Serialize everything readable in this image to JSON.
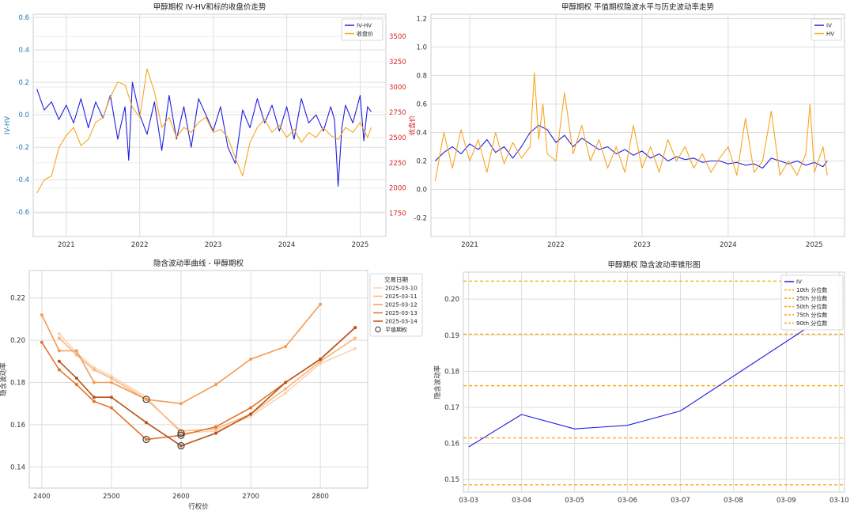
{
  "colors": {
    "iv": "#1f1fe0",
    "hv": "#f5a623",
    "price_axis": "#d62728",
    "left_axis": "#1f77b4",
    "grid": "#dddddd",
    "pct": "#ffa500",
    "smile": [
      "#fcd2b0",
      "#fbb67f",
      "#f59a52",
      "#e4742e",
      "#b6541a"
    ]
  },
  "chart_data": [
    {
      "id": "p1",
      "type": "line",
      "title": "甲醇期权 IV-HV和标的收盘价走势",
      "ylabel": "IV-HV",
      "ylabel_right": "收盘价",
      "xlim": [
        2020.55,
        2025.35
      ],
      "ylim": [
        -0.75,
        0.62
      ],
      "ylim_right": [
        1520,
        3720
      ],
      "x_ticks": [
        {
          "value": 2021,
          "label": "2021"
        },
        {
          "value": 2022,
          "label": "2022"
        },
        {
          "value": 2023,
          "label": "2023"
        },
        {
          "value": 2024,
          "label": "2024"
        },
        {
          "value": 2025,
          "label": "2025"
        }
      ],
      "y_ticks": [
        {
          "value": 0.6,
          "label": "0.6"
        },
        {
          "value": 0.4,
          "label": "0.4"
        },
        {
          "value": 0.2,
          "label": "0.2"
        },
        {
          "value": 0.0,
          "label": "0.0"
        },
        {
          "value": -0.2,
          "label": "-0.2"
        },
        {
          "value": -0.4,
          "label": "-0.4"
        },
        {
          "value": -0.6,
          "label": "-0.6"
        }
      ],
      "y_ticks_right": [
        {
          "value": 3500,
          "label": "3500"
        },
        {
          "value": 3250,
          "label": "3250"
        },
        {
          "value": 3000,
          "label": "3000"
        },
        {
          "value": 2750,
          "label": "2750"
        },
        {
          "value": 2500,
          "label": "2500"
        },
        {
          "value": 2250,
          "label": "2250"
        },
        {
          "value": 2000,
          "label": "2000"
        },
        {
          "value": 1750,
          "label": "1750"
        }
      ],
      "legend": [
        {
          "label": "IV-HV",
          "color_key": "iv",
          "style": "solid"
        },
        {
          "label": "收盘价",
          "color_key": "hv",
          "style": "solid"
        }
      ],
      "series": [
        {
          "name": "IV-HV",
          "color_key": "iv",
          "axis": "left",
          "x": [
            2020.6,
            2020.7,
            2020.8,
            2020.9,
            2021.0,
            2021.1,
            2021.2,
            2021.3,
            2021.4,
            2021.5,
            2021.6,
            2021.7,
            2021.8,
            2021.85,
            2021.9,
            2022.0,
            2022.1,
            2022.2,
            2022.3,
            2022.4,
            2022.5,
            2022.6,
            2022.7,
            2022.8,
            2022.9,
            2023.0,
            2023.1,
            2023.2,
            2023.3,
            2023.4,
            2023.5,
            2023.6,
            2023.7,
            2023.8,
            2023.9,
            2024.0,
            2024.1,
            2024.2,
            2024.3,
            2024.4,
            2024.5,
            2024.6,
            2024.65,
            2024.7,
            2024.75,
            2024.8,
            2024.9,
            2025.0,
            2025.05,
            2025.1,
            2025.15
          ],
          "y": [
            0.16,
            0.03,
            0.08,
            -0.03,
            0.06,
            -0.05,
            0.1,
            -0.08,
            0.08,
            -0.02,
            0.12,
            -0.15,
            0.05,
            -0.28,
            0.2,
            0.0,
            -0.12,
            0.08,
            -0.22,
            0.12,
            -0.15,
            0.05,
            -0.2,
            0.1,
            0.0,
            -0.1,
            0.05,
            -0.2,
            -0.3,
            0.03,
            -0.08,
            0.1,
            -0.05,
            0.06,
            -0.1,
            0.05,
            -0.15,
            0.1,
            -0.05,
            0.0,
            -0.1,
            0.05,
            -0.03,
            -0.44,
            -0.08,
            0.06,
            -0.05,
            0.12,
            -0.16,
            0.05,
            0.02
          ]
        },
        {
          "name": "收盘价",
          "color_key": "hv",
          "axis": "right",
          "x": [
            2020.6,
            2020.7,
            2020.8,
            2020.9,
            2021.0,
            2021.1,
            2021.2,
            2021.3,
            2021.4,
            2021.5,
            2021.6,
            2021.7,
            2021.8,
            2021.9,
            2022.0,
            2022.1,
            2022.2,
            2022.3,
            2022.4,
            2022.5,
            2022.6,
            2022.7,
            2022.8,
            2022.9,
            2023.0,
            2023.1,
            2023.2,
            2023.3,
            2023.4,
            2023.5,
            2023.6,
            2023.7,
            2023.8,
            2023.9,
            2024.0,
            2024.1,
            2024.2,
            2024.3,
            2024.4,
            2024.5,
            2024.6,
            2024.7,
            2024.8,
            2024.9,
            2025.0,
            2025.1,
            2025.15
          ],
          "y": [
            1950,
            2080,
            2120,
            2400,
            2520,
            2600,
            2420,
            2480,
            2650,
            2700,
            2900,
            3050,
            3020,
            2800,
            2700,
            3180,
            2950,
            2600,
            2700,
            2500,
            2600,
            2550,
            2650,
            2700,
            2550,
            2580,
            2500,
            2300,
            2120,
            2450,
            2600,
            2680,
            2550,
            2620,
            2500,
            2580,
            2450,
            2550,
            2500,
            2600,
            2520,
            2480,
            2600,
            2550,
            2650,
            2500,
            2600
          ]
        }
      ]
    },
    {
      "id": "p2",
      "type": "line",
      "title": "甲醇期权 平值期权隐波水平与历史波动率走势",
      "xlim": [
        2020.55,
        2025.35
      ],
      "ylim": [
        -0.33,
        1.23
      ],
      "x_ticks": [
        {
          "value": 2021,
          "label": "2021"
        },
        {
          "value": 2022,
          "label": "2022"
        },
        {
          "value": 2023,
          "label": "2023"
        },
        {
          "value": 2024,
          "label": "2024"
        },
        {
          "value": 2025,
          "label": "2025"
        }
      ],
      "y_ticks": [
        {
          "value": 1.2,
          "label": "1.2"
        },
        {
          "value": 1.0,
          "label": "1.0"
        },
        {
          "value": 0.8,
          "label": "0.8"
        },
        {
          "value": 0.6,
          "label": "0.6"
        },
        {
          "value": 0.4,
          "label": "0.4"
        },
        {
          "value": 0.2,
          "label": "0.2"
        },
        {
          "value": 0.0,
          "label": "0.0"
        },
        {
          "value": -0.2,
          "label": "-0.2"
        }
      ],
      "legend": [
        {
          "label": "IV",
          "color_key": "iv",
          "style": "solid"
        },
        {
          "label": "HV",
          "color_key": "hv",
          "style": "solid"
        }
      ],
      "series": [
        {
          "name": "IV",
          "color_key": "iv",
          "x": [
            2020.6,
            2020.7,
            2020.8,
            2020.9,
            2021.0,
            2021.1,
            2021.2,
            2021.3,
            2021.4,
            2021.5,
            2021.6,
            2021.7,
            2021.8,
            2021.9,
            2022.0,
            2022.1,
            2022.2,
            2022.3,
            2022.4,
            2022.5,
            2022.6,
            2022.7,
            2022.8,
            2022.9,
            2023.0,
            2023.1,
            2023.2,
            2023.3,
            2023.4,
            2023.5,
            2023.6,
            2023.7,
            2023.8,
            2023.9,
            2024.0,
            2024.1,
            2024.2,
            2024.3,
            2024.4,
            2024.5,
            2024.6,
            2024.7,
            2024.8,
            2024.9,
            2025.0,
            2025.1,
            2025.15
          ],
          "y": [
            0.2,
            0.26,
            0.3,
            0.25,
            0.32,
            0.28,
            0.35,
            0.26,
            0.3,
            0.22,
            0.3,
            0.4,
            0.45,
            0.42,
            0.33,
            0.38,
            0.3,
            0.36,
            0.32,
            0.28,
            0.3,
            0.25,
            0.28,
            0.24,
            0.27,
            0.22,
            0.25,
            0.2,
            0.23,
            0.21,
            0.22,
            0.19,
            0.2,
            0.2,
            0.18,
            0.19,
            0.17,
            0.18,
            0.15,
            0.22,
            0.2,
            0.18,
            0.2,
            0.17,
            0.19,
            0.16,
            0.2
          ]
        },
        {
          "name": "HV",
          "color_key": "hv",
          "x": [
            2020.6,
            2020.7,
            2020.8,
            2020.9,
            2021.0,
            2021.1,
            2021.2,
            2021.3,
            2021.4,
            2021.5,
            2021.6,
            2021.7,
            2021.75,
            2021.8,
            2021.85,
            2021.9,
            2022.0,
            2022.1,
            2022.2,
            2022.3,
            2022.4,
            2022.5,
            2022.6,
            2022.7,
            2022.8,
            2022.9,
            2023.0,
            2023.1,
            2023.2,
            2023.3,
            2023.4,
            2023.5,
            2023.6,
            2023.7,
            2023.8,
            2023.9,
            2024.0,
            2024.1,
            2024.2,
            2024.3,
            2024.4,
            2024.5,
            2024.6,
            2024.7,
            2024.8,
            2024.9,
            2024.95,
            2025.0,
            2025.1,
            2025.15
          ],
          "y": [
            0.06,
            0.4,
            0.15,
            0.42,
            0.2,
            0.35,
            0.12,
            0.4,
            0.18,
            0.33,
            0.22,
            0.3,
            0.82,
            0.35,
            0.6,
            0.25,
            0.2,
            0.68,
            0.25,
            0.45,
            0.2,
            0.35,
            0.15,
            0.3,
            0.12,
            0.45,
            0.15,
            0.3,
            0.12,
            0.35,
            0.2,
            0.3,
            0.15,
            0.25,
            0.12,
            0.22,
            0.3,
            0.1,
            0.5,
            0.12,
            0.2,
            0.55,
            0.1,
            0.2,
            0.1,
            0.25,
            0.6,
            0.12,
            0.3,
            0.1
          ]
        }
      ]
    },
    {
      "id": "p3",
      "type": "line",
      "title": "隐含波动率曲线 - 甲醇期权",
      "xlabel": "行权价",
      "ylabel": "隐含波动率",
      "xlim": [
        2382,
        2868
      ],
      "ylim": [
        0.13,
        0.233
      ],
      "x_ticks": [
        {
          "value": 2400,
          "label": "2400"
        },
        {
          "value": 2500,
          "label": "2500"
        },
        {
          "value": 2600,
          "label": "2600"
        },
        {
          "value": 2700,
          "label": "2700"
        },
        {
          "value": 2800,
          "label": "2800"
        }
      ],
      "y_ticks": [
        {
          "value": 0.14,
          "label": "0.14"
        },
        {
          "value": 0.16,
          "label": "0.16"
        },
        {
          "value": 0.18,
          "label": "0.18"
        },
        {
          "value": 0.2,
          "label": "0.20"
        },
        {
          "value": 0.22,
          "label": "0.22"
        }
      ],
      "legend_title": "交易日期",
      "legend": [
        {
          "label": "2025-03-10",
          "color_key": "smile.0",
          "style": "solid"
        },
        {
          "label": "2025-03-11",
          "color_key": "smile.1",
          "style": "solid"
        },
        {
          "label": "2025-03-12",
          "color_key": "smile.2",
          "style": "solid"
        },
        {
          "label": "2025-03-13",
          "color_key": "smile.3",
          "style": "solid"
        },
        {
          "label": "2025-03-14",
          "color_key": "smile.4",
          "style": "solid"
        },
        {
          "label": "平值期权",
          "color_key": "",
          "style": "circle"
        }
      ],
      "series": [
        {
          "name": "2025-03-10",
          "color_key": "smile.0",
          "x": [
            2425,
            2450,
            2475,
            2500,
            2550,
            2600,
            2650,
            2700,
            2750,
            2800,
            2850
          ],
          "y": [
            0.203,
            0.194,
            0.187,
            0.183,
            0.173,
            0.156,
            0.157,
            0.164,
            0.175,
            0.189,
            0.196
          ]
        },
        {
          "name": "2025-03-11",
          "color_key": "smile.1",
          "x": [
            2425,
            2450,
            2475,
            2500,
            2550,
            2600,
            2650,
            2700,
            2750,
            2800,
            2850
          ],
          "y": [
            0.201,
            0.193,
            0.186,
            0.182,
            0.172,
            0.157,
            0.158,
            0.165,
            0.177,
            0.19,
            0.201
          ]
        },
        {
          "name": "2025-03-12",
          "color_key": "smile.2",
          "x": [
            2400,
            2425,
            2450,
            2475,
            2500,
            2550,
            2600,
            2650,
            2700,
            2750,
            2800
          ],
          "y": [
            0.212,
            0.195,
            0.195,
            0.18,
            0.18,
            0.172,
            0.17,
            0.179,
            0.191,
            0.197,
            0.217
          ]
        },
        {
          "name": "2025-03-13",
          "color_key": "smile.3",
          "x": [
            2400,
            2425,
            2450,
            2475,
            2500,
            2550,
            2600,
            2650,
            2700,
            2750,
            2800,
            2850
          ],
          "y": [
            0.199,
            0.186,
            0.179,
            0.171,
            0.168,
            0.153,
            0.155,
            0.159,
            0.168,
            0.18,
            0.191,
            0.206
          ]
        },
        {
          "name": "2025-03-14",
          "color_key": "smile.4",
          "x": [
            2425,
            2450,
            2475,
            2500,
            2550,
            2600,
            2650,
            2700,
            2750,
            2800,
            2850
          ],
          "y": [
            0.19,
            0.182,
            0.173,
            0.173,
            0.161,
            0.15,
            0.156,
            0.165,
            0.18,
            0.191,
            0.206
          ]
        }
      ],
      "atm_points": [
        {
          "x": 2550,
          "y": 0.172
        },
        {
          "x": 2550,
          "y": 0.153
        },
        {
          "x": 2600,
          "y": 0.156
        },
        {
          "x": 2600,
          "y": 0.155
        },
        {
          "x": 2600,
          "y": 0.15
        }
      ]
    },
    {
      "id": "p4",
      "type": "line",
      "title": "甲醇期权 隐含波动率锥形图",
      "ylabel": "隐含波动率",
      "xlim": [
        -0.1,
        7.1
      ],
      "ylim": [
        0.1465,
        0.2075
      ],
      "x_ticks": [
        {
          "value": 0,
          "label": "03-03"
        },
        {
          "value": 1,
          "label": "03-04"
        },
        {
          "value": 2,
          "label": "03-05"
        },
        {
          "value": 3,
          "label": "03-06"
        },
        {
          "value": 4,
          "label": "03-07"
        },
        {
          "value": 5,
          "label": "03-08"
        },
        {
          "value": 6,
          "label": "03-09"
        },
        {
          "value": 7,
          "label": "03-10"
        }
      ],
      "y_ticks": [
        {
          "value": 0.15,
          "label": "0.15"
        },
        {
          "value": 0.16,
          "label": "0.16"
        },
        {
          "value": 0.17,
          "label": "0.17"
        },
        {
          "value": 0.18,
          "label": "0.18"
        },
        {
          "value": 0.19,
          "label": "0.19"
        },
        {
          "value": 0.2,
          "label": "0.20"
        }
      ],
      "legend": [
        {
          "label": "IV",
          "color_key": "iv",
          "style": "solid"
        },
        {
          "label": "10th 分位数",
          "color_key": "pct",
          "style": "dashed"
        },
        {
          "label": "25th 分位数",
          "color_key": "pct",
          "style": "dashed"
        },
        {
          "label": "50th 分位数",
          "color_key": "pct",
          "style": "dashed"
        },
        {
          "label": "75th 分位数",
          "color_key": "pct",
          "style": "dashed"
        },
        {
          "label": "90th 分位数",
          "color_key": "pct",
          "style": "dashed"
        }
      ],
      "series": [
        {
          "name": "IV",
          "color_key": "iv",
          "x": [
            0,
            1,
            2,
            3,
            4,
            6.6
          ],
          "y": [
            0.159,
            0.168,
            0.164,
            0.165,
            0.169,
            0.194
          ]
        }
      ],
      "hlines": [
        {
          "name": "10th 分位数",
          "value": 0.1485
        },
        {
          "name": "25th 分位数",
          "value": 0.1615
        },
        {
          "name": "50th 分位数",
          "value": 0.176
        },
        {
          "name": "75th 分位数",
          "value": 0.1903
        },
        {
          "name": "90th 分位数",
          "value": 0.205
        }
      ]
    }
  ]
}
